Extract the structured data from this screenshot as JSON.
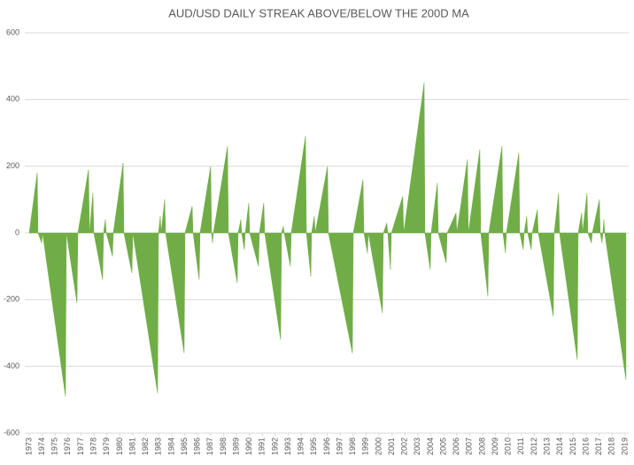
{
  "chart_data": {
    "type": "area",
    "title": "AUD/USD DAILY STREAK ABOVE/BELOW THE 200D MA",
    "color": "#70ad47",
    "grid": true,
    "x": [
      1973.0,
      1973.62,
      1973.68,
      1973.96,
      1974.03,
      1975.8,
      1975.87,
      1976.69,
      1976.76,
      1977.58,
      1977.65,
      1977.92,
      1977.99,
      1978.67,
      1978.74,
      1978.88,
      1978.95,
      1979.43,
      1979.49,
      1980.25,
      1980.31,
      1980.93,
      1981.0,
      1982.91,
      1982.98,
      1983.12,
      1983.18,
      1983.46,
      1983.53,
      1984.96,
      1985.03,
      1985.58,
      1985.65,
      1986.12,
      1986.19,
      1987.01,
      1987.08,
      1987.15,
      1987.22,
      1988.31,
      1988.38,
      1989.06,
      1989.13,
      1989.34,
      1989.4,
      1989.61,
      1989.68,
      1989.95,
      1990.02,
      1990.7,
      1990.77,
      1991.11,
      1991.18,
      1992.41,
      1992.48,
      1992.62,
      1992.69,
      1993.16,
      1993.23,
      1994.33,
      1994.4,
      1994.74,
      1994.8,
      1995.01,
      1995.08,
      1996.03,
      1996.1,
      1997.95,
      1998.02,
      1998.77,
      1998.84,
      1999.11,
      1999.18,
      2000.27,
      2000.34,
      2000.61,
      2000.68,
      2000.89,
      2000.96,
      2001.84,
      2001.91,
      2003.49,
      2003.55,
      2003.96,
      2004.03,
      2004.51,
      2004.58,
      2005.19,
      2005.26,
      2005.95,
      2006.01,
      2006.83,
      2006.9,
      2007.79,
      2007.86,
      2008.41,
      2008.48,
      2009.5,
      2009.57,
      2009.77,
      2009.84,
      2010.8,
      2010.87,
      2011.14,
      2011.21,
      2011.41,
      2011.48,
      2011.76,
      2011.83,
      2012.23,
      2012.3,
      2013.46,
      2013.53,
      2013.87,
      2013.94,
      2015.31,
      2015.38,
      2015.65,
      2015.72,
      2016.06,
      2016.13,
      2016.4,
      2016.47,
      2017.02,
      2017.08,
      2017.22,
      2017.29,
      2017.36,
      2017.43,
      2019.07
    ],
    "values": [
      0,
      180,
      0,
      -30,
      0,
      -490,
      0,
      -210,
      0,
      190,
      0,
      120,
      0,
      -140,
      0,
      40,
      0,
      -70,
      0,
      210,
      0,
      -120,
      0,
      -480,
      0,
      50,
      0,
      100,
      0,
      -360,
      0,
      80,
      0,
      -140,
      0,
      200,
      0,
      -30,
      0,
      260,
      0,
      -150,
      0,
      40,
      0,
      -50,
      0,
      90,
      0,
      -100,
      0,
      90,
      0,
      -320,
      0,
      20,
      0,
      -100,
      0,
      290,
      0,
      -130,
      0,
      50,
      0,
      200,
      0,
      -360,
      0,
      160,
      0,
      -60,
      0,
      -240,
      0,
      30,
      0,
      -110,
      0,
      110,
      0,
      450,
      0,
      -110,
      0,
      150,
      0,
      -90,
      0,
      60,
      0,
      220,
      0,
      250,
      0,
      -190,
      0,
      260,
      0,
      -60,
      0,
      240,
      0,
      -50,
      0,
      50,
      0,
      -50,
      0,
      70,
      0,
      -250,
      0,
      120,
      0,
      -380,
      0,
      60,
      0,
      120,
      0,
      -30,
      0,
      100,
      0,
      -30,
      0,
      40,
      0,
      -440
    ],
    "xlim": [
      1972.66,
      2019.28
    ],
    "xticks": [
      1973,
      1974,
      1975,
      1976,
      1977,
      1978,
      1979,
      1980,
      1981,
      1982,
      1983,
      1984,
      1985,
      1986,
      1987,
      1988,
      1989,
      1990,
      1991,
      1992,
      1993,
      1994,
      1995,
      1996,
      1997,
      1998,
      1999,
      2000,
      2001,
      2002,
      2003,
      2004,
      2005,
      2006,
      2007,
      2008,
      2009,
      2010,
      2011,
      2012,
      2013,
      2014,
      2015,
      2016,
      2017,
      2018,
      2019
    ],
    "ylim": [
      -600,
      600
    ],
    "yticks": [
      -600,
      -400,
      -200,
      0,
      200,
      400,
      600
    ]
  }
}
